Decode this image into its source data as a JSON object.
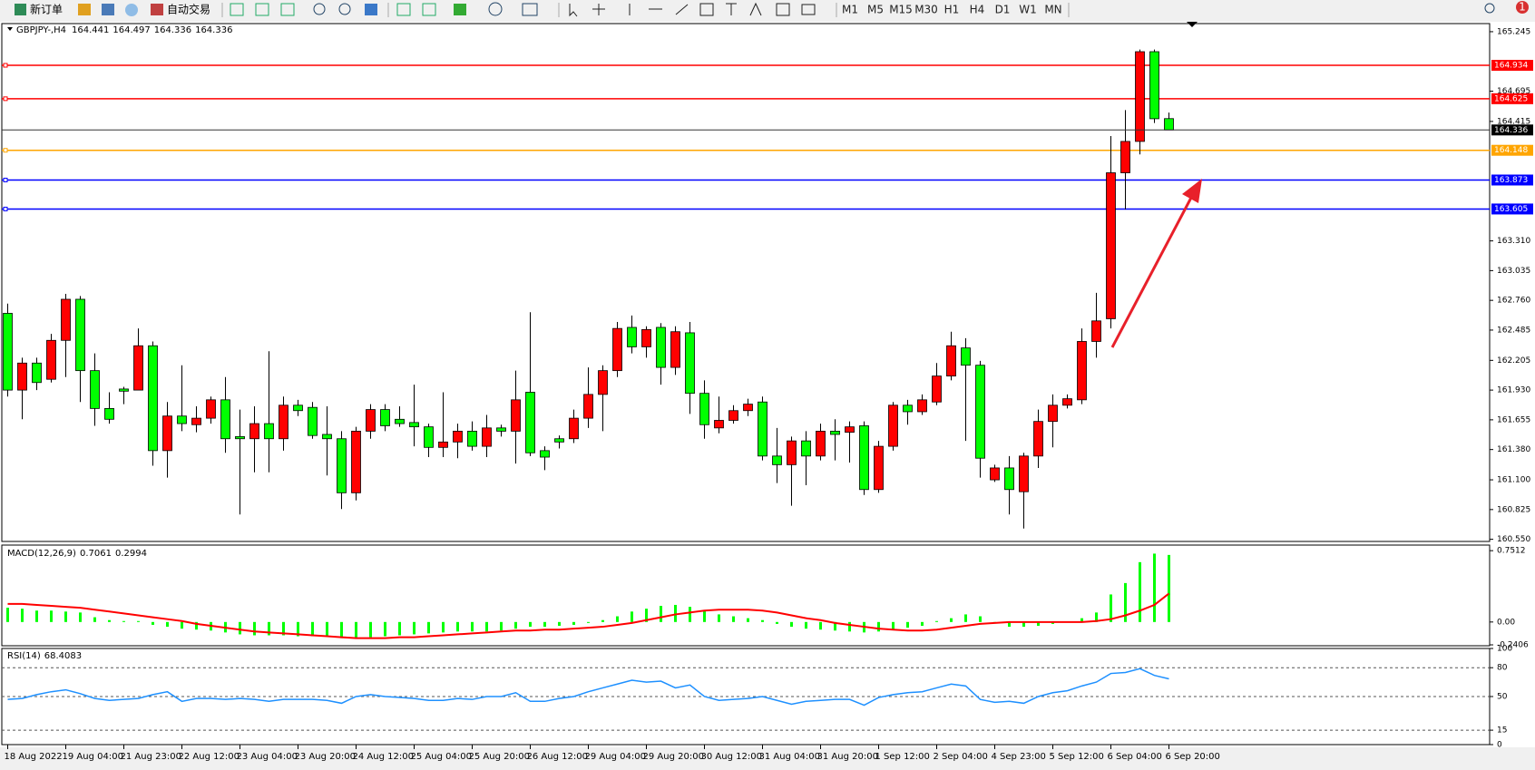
{
  "toolbar": {
    "new_order": "新订单",
    "auto_trading": "自动交易",
    "timeframes": [
      "M1",
      "M5",
      "M15",
      "M30",
      "H1",
      "H4",
      "D1",
      "W1",
      "MN"
    ],
    "notifications": 1
  },
  "chart_data": [
    {
      "type": "candlestick",
      "title": "GBPJPY-,H4",
      "up_color": "#ff0000",
      "down_color": "#00ff00",
      "categories": [
        "18 Aug 2022",
        null,
        null,
        null,
        "19 Aug 04:00",
        null,
        null,
        null,
        "21 Aug 23:00",
        null,
        null,
        null,
        "22 Aug 12:00",
        null,
        null,
        null,
        "23 Aug 04:00",
        null,
        null,
        null,
        "23 Aug 20:00",
        null,
        null,
        null,
        "24 Aug 12:00",
        null,
        null,
        null,
        "25 Aug 04:00",
        null,
        null,
        null,
        "25 Aug 20:00",
        null,
        null,
        null,
        "26 Aug 12:00",
        null,
        null,
        null,
        "29 Aug 04:00",
        null,
        null,
        null,
        "29 Aug 20:00",
        null,
        null,
        null,
        "30 Aug 12:00",
        null,
        null,
        null,
        "31 Aug 04:00",
        null,
        null,
        null,
        "31 Aug 20:00",
        null,
        null,
        null,
        "1 Sep 12:00",
        null,
        null,
        null,
        "2 Sep 04:00",
        null,
        null,
        null,
        "4 Sep 23:00",
        null,
        null,
        null,
        "5 Sep 12:00",
        null,
        null,
        null,
        "6 Sep 04:00",
        null,
        null,
        null,
        "6 Sep 20:00"
      ],
      "candles": [
        [
          162.64,
          162.73,
          161.87,
          161.93
        ],
        [
          161.93,
          162.23,
          161.66,
          162.18
        ],
        [
          162.18,
          162.23,
          161.93,
          162.0
        ],
        [
          162.03,
          162.45,
          162.0,
          162.39
        ],
        [
          162.39,
          162.82,
          162.05,
          162.77
        ],
        [
          162.77,
          162.8,
          161.82,
          162.11
        ],
        [
          162.11,
          162.27,
          161.6,
          161.76
        ],
        [
          161.76,
          161.91,
          161.62,
          161.66
        ],
        [
          161.94,
          161.96,
          161.8,
          161.92
        ],
        [
          161.93,
          162.5,
          161.93,
          162.34
        ],
        [
          162.34,
          162.38,
          161.23,
          161.37
        ],
        [
          161.37,
          161.82,
          161.12,
          161.69
        ],
        [
          161.69,
          162.16,
          161.55,
          161.62
        ],
        [
          161.61,
          161.78,
          161.54,
          161.67
        ],
        [
          161.67,
          161.87,
          161.62,
          161.84
        ],
        [
          161.84,
          162.05,
          161.35,
          161.48
        ],
        [
          161.5,
          161.75,
          160.78,
          161.48
        ],
        [
          161.48,
          161.78,
          161.17,
          161.62
        ],
        [
          161.62,
          162.29,
          161.17,
          161.48
        ],
        [
          161.48,
          161.87,
          161.37,
          161.79
        ],
        [
          161.79,
          161.84,
          161.69,
          161.74
        ],
        [
          161.77,
          161.82,
          161.48,
          161.51
        ],
        [
          161.52,
          161.78,
          161.14,
          161.48
        ],
        [
          161.48,
          161.55,
          160.83,
          160.98
        ],
        [
          160.98,
          161.59,
          160.91,
          161.55
        ],
        [
          161.55,
          161.8,
          161.48,
          161.75
        ],
        [
          161.75,
          161.8,
          161.55,
          161.6
        ],
        [
          161.66,
          161.78,
          161.59,
          161.62
        ],
        [
          161.63,
          161.98,
          161.41,
          161.59
        ],
        [
          161.59,
          161.62,
          161.31,
          161.4
        ],
        [
          161.4,
          161.91,
          161.31,
          161.45
        ],
        [
          161.45,
          161.62,
          161.3,
          161.55
        ],
        [
          161.55,
          161.64,
          161.37,
          161.41
        ],
        [
          161.41,
          161.7,
          161.31,
          161.58
        ],
        [
          161.58,
          161.61,
          161.5,
          161.55
        ],
        [
          161.55,
          162.11,
          161.25,
          161.84
        ],
        [
          161.91,
          162.65,
          161.32,
          161.35
        ],
        [
          161.37,
          161.41,
          161.19,
          161.31
        ],
        [
          161.48,
          161.51,
          161.39,
          161.45
        ],
        [
          161.48,
          161.75,
          161.44,
          161.67
        ],
        [
          161.67,
          162.14,
          161.58,
          161.89
        ],
        [
          161.89,
          162.16,
          161.55,
          162.11
        ],
        [
          162.11,
          162.56,
          162.05,
          162.5
        ],
        [
          162.51,
          162.62,
          162.27,
          162.33
        ],
        [
          162.33,
          162.52,
          162.23,
          162.49
        ],
        [
          162.51,
          162.55,
          161.98,
          162.14
        ],
        [
          162.14,
          162.52,
          162.07,
          162.47
        ],
        [
          162.46,
          162.56,
          161.71,
          161.9
        ],
        [
          161.9,
          162.02,
          161.48,
          161.61
        ],
        [
          161.58,
          161.87,
          161.53,
          161.65
        ],
        [
          161.65,
          161.79,
          161.62,
          161.74
        ],
        [
          161.74,
          161.85,
          161.69,
          161.8
        ],
        [
          161.82,
          161.87,
          161.28,
          161.32
        ],
        [
          161.32,
          161.58,
          161.07,
          161.24
        ],
        [
          161.24,
          161.5,
          160.86,
          161.46
        ],
        [
          161.46,
          161.55,
          161.05,
          161.32
        ],
        [
          161.32,
          161.62,
          161.28,
          161.55
        ],
        [
          161.55,
          161.66,
          161.28,
          161.52
        ],
        [
          161.54,
          161.64,
          161.26,
          161.59
        ],
        [
          161.6,
          161.64,
          160.96,
          161.01
        ],
        [
          161.01,
          161.46,
          160.98,
          161.41
        ],
        [
          161.41,
          161.82,
          161.37,
          161.79
        ],
        [
          161.79,
          161.84,
          161.61,
          161.73
        ],
        [
          161.73,
          161.89,
          161.7,
          161.84
        ],
        [
          161.82,
          162.18,
          161.79,
          162.06
        ],
        [
          162.06,
          162.47,
          162.02,
          162.34
        ],
        [
          162.32,
          162.41,
          161.46,
          162.16
        ],
        [
          162.16,
          162.2,
          161.12,
          161.3
        ],
        [
          161.1,
          161.24,
          161.08,
          161.21
        ],
        [
          161.21,
          161.32,
          160.78,
          161.01
        ],
        [
          160.99,
          161.35,
          160.65,
          161.32
        ],
        [
          161.32,
          161.75,
          161.21,
          161.64
        ],
        [
          161.64,
          161.89,
          161.4,
          161.79
        ],
        [
          161.79,
          161.89,
          161.76,
          161.85
        ],
        [
          161.84,
          162.5,
          161.8,
          162.38
        ],
        [
          162.38,
          162.83,
          162.23,
          162.57
        ],
        [
          162.59,
          164.28,
          162.5,
          163.94
        ],
        [
          163.94,
          164.52,
          163.6,
          164.23
        ],
        [
          164.23,
          165.08,
          164.11,
          165.06
        ],
        [
          165.06,
          165.08,
          164.4,
          164.44
        ],
        [
          164.441,
          164.497,
          164.336,
          164.336
        ]
      ],
      "ylim": [
        160.53,
        165.32
      ],
      "yticks": [
        165.245,
        164.695,
        164.415,
        {
          "value": 163.31,
          "label": "163.310"
        },
        163.035,
        {
          "value": 162.76,
          "label": "162.760"
        },
        162.485,
        162.205,
        {
          "value": 161.93,
          "label": "161.930"
        },
        161.655,
        {
          "value": 161.38,
          "label": "161.380"
        },
        {
          "value": 161.1,
          "label": "161.100"
        },
        160.825,
        {
          "value": 160.55,
          "label": "160.550"
        }
      ],
      "levels": [
        {
          "value": 164.934,
          "color": "#ff0000"
        },
        {
          "value": 164.625,
          "color": "#ff0000"
        },
        {
          "value": 164.148,
          "color": "#ffa500"
        },
        {
          "value": 163.873,
          "color": "#0000ff"
        },
        {
          "value": 163.605,
          "color": "#0000ff"
        }
      ]
    },
    {
      "type": "macd",
      "title": "MACD(12,26,9)",
      "ylim": [
        -0.25,
        0.81
      ],
      "yticks": [
        0.7512,
        {
          "value": 0,
          "label": "0.00"
        },
        -0.2406
      ],
      "histogram": {
        "color": "#00ff00",
        "values": [
          0.15,
          0.14,
          0.12,
          0.12,
          0.11,
          0.1,
          0.05,
          0.02,
          0.01,
          0.01,
          -0.03,
          -0.05,
          -0.07,
          -0.08,
          -0.09,
          -0.11,
          -0.13,
          -0.14,
          -0.14,
          -0.14,
          -0.15,
          -0.15,
          -0.15,
          -0.17,
          -0.17,
          -0.16,
          -0.15,
          -0.14,
          -0.13,
          -0.12,
          -0.11,
          -0.1,
          -0.1,
          -0.1,
          -0.09,
          -0.07,
          -0.05,
          -0.05,
          -0.04,
          -0.03,
          -0.01,
          0.02,
          0.06,
          0.11,
          0.14,
          0.17,
          0.18,
          0.16,
          0.12,
          0.08,
          0.06,
          0.04,
          0.02,
          -0.02,
          -0.05,
          -0.07,
          -0.08,
          -0.09,
          -0.1,
          -0.11,
          -0.1,
          -0.08,
          -0.06,
          -0.04,
          0.01,
          0.04,
          0.08,
          0.06,
          -0.01,
          -0.05,
          -0.05,
          -0.04,
          -0.02,
          0.0,
          0.04,
          0.1,
          0.29,
          0.41,
          0.63,
          0.72,
          0.7061
        ]
      },
      "signal": {
        "color": "#ff0000",
        "values": [
          0.19,
          0.19,
          0.18,
          0.17,
          0.16,
          0.15,
          0.13,
          0.11,
          0.09,
          0.07,
          0.05,
          0.03,
          0.01,
          -0.02,
          -0.04,
          -0.06,
          -0.08,
          -0.1,
          -0.11,
          -0.12,
          -0.13,
          -0.14,
          -0.15,
          -0.16,
          -0.17,
          -0.17,
          -0.17,
          -0.16,
          -0.16,
          -0.15,
          -0.14,
          -0.13,
          -0.12,
          -0.11,
          -0.1,
          -0.09,
          -0.09,
          -0.08,
          -0.08,
          -0.07,
          -0.06,
          -0.05,
          -0.03,
          -0.01,
          0.02,
          0.05,
          0.08,
          0.1,
          0.12,
          0.13,
          0.13,
          0.13,
          0.12,
          0.1,
          0.07,
          0.04,
          0.02,
          -0.01,
          -0.03,
          -0.05,
          -0.07,
          -0.08,
          -0.09,
          -0.09,
          -0.08,
          -0.06,
          -0.04,
          -0.02,
          -0.01,
          0.0,
          0.0,
          0.0,
          0.0,
          0.0,
          0.0,
          0.01,
          0.03,
          0.07,
          0.12,
          0.18,
          0.2994
        ]
      }
    },
    {
      "type": "rsi",
      "title": "RSI(14)",
      "color": "#1e90ff",
      "ylim": [
        0,
        100
      ],
      "yticks": [
        100,
        80,
        50,
        15,
        0
      ],
      "levels": [
        80,
        50,
        15
      ],
      "values": [
        47,
        48,
        52,
        55,
        57,
        53,
        48,
        46,
        47,
        48,
        52,
        55,
        45,
        48,
        48,
        47,
        48,
        47,
        45,
        47,
        47,
        47,
        46,
        43,
        50,
        52,
        50,
        49,
        48,
        46,
        46,
        48,
        47,
        50,
        50,
        54,
        45,
        45,
        48,
        50,
        55,
        59,
        63,
        67,
        65,
        66,
        59,
        62,
        50,
        46,
        47,
        48,
        50,
        46,
        42,
        45,
        46,
        47,
        47,
        41,
        49,
        52,
        54,
        55,
        59,
        63,
        61,
        47,
        44,
        45,
        43,
        50,
        54,
        56,
        61,
        65,
        74,
        75,
        79,
        72,
        68.4083
      ]
    }
  ]
}
